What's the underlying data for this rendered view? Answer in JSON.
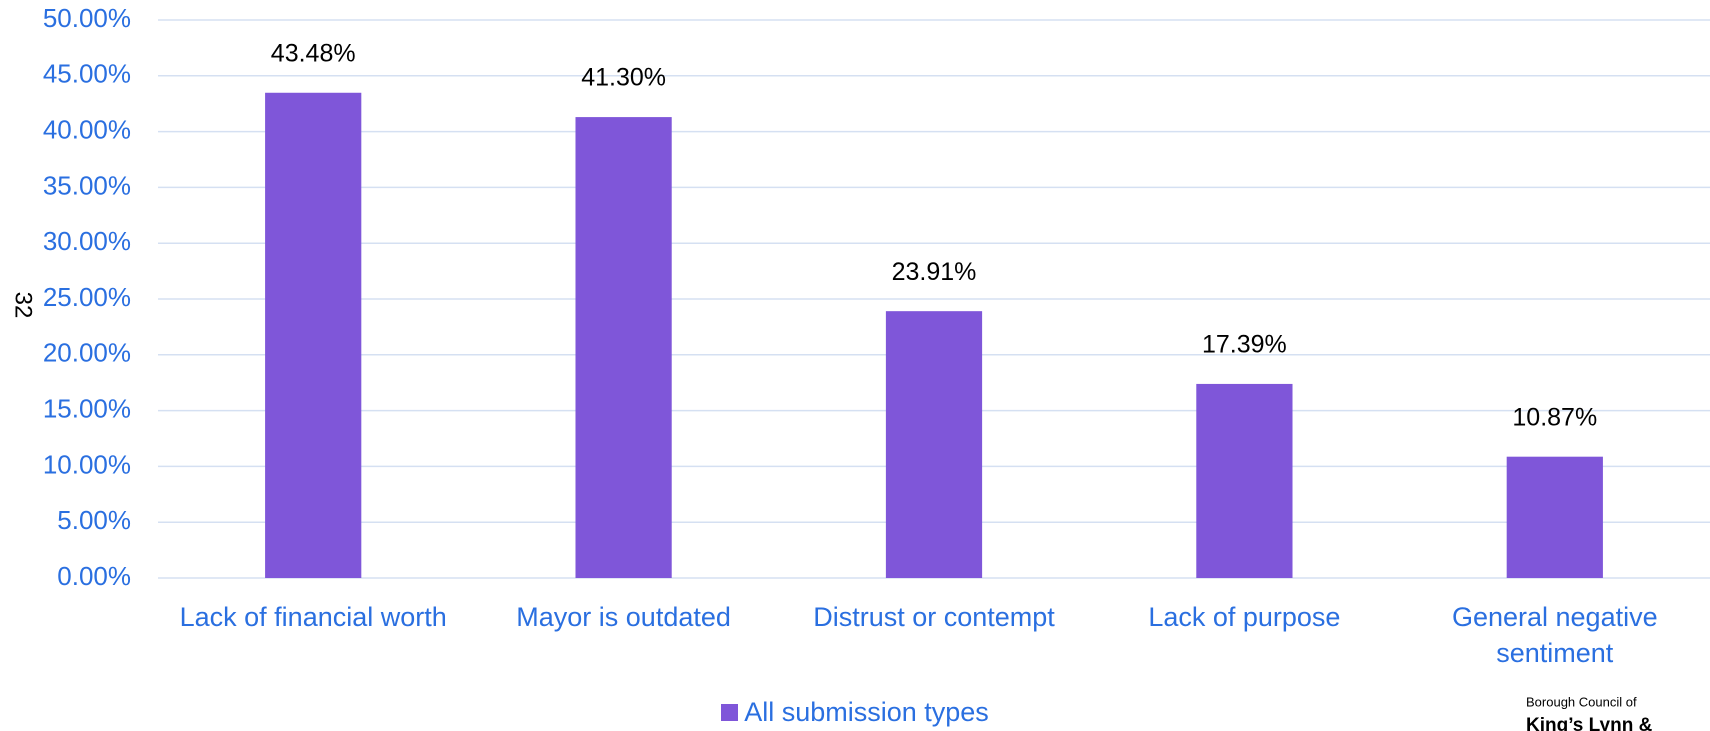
{
  "chart_data": {
    "type": "bar",
    "categories": [
      "Lack of financial worth",
      "Mayor is outdated",
      "Distrust or contempt",
      "Lack of purpose",
      "General negative sentiment"
    ],
    "series": [
      {
        "name": "All submission types",
        "color": "#7f56d9",
        "values": [
          43.48,
          41.3,
          23.91,
          17.39,
          10.87
        ],
        "value_labels": [
          "43.48%",
          "41.30%",
          "23.91%",
          "17.39%",
          "10.87%"
        ]
      }
    ],
    "ylim": [
      0,
      50
    ],
    "yticks": [
      {
        "value": 0,
        "label": "0.00%"
      },
      {
        "value": 5,
        "label": "5.00%"
      },
      {
        "value": 10,
        "label": "10.00%"
      },
      {
        "value": 15,
        "label": "15.00%"
      },
      {
        "value": 20,
        "label": "20.00%"
      },
      {
        "value": 25,
        "label": "25.00%"
      },
      {
        "value": 30,
        "label": "30.00%"
      },
      {
        "value": 35,
        "label": "35.00%"
      },
      {
        "value": 40,
        "label": "40.00%"
      },
      {
        "value": 45,
        "label": "45.00%"
      },
      {
        "value": 50,
        "label": "50.00%"
      }
    ],
    "grid": true,
    "legend": "bottom"
  },
  "page_number": "32",
  "logo": {
    "line1": "Borough Council of",
    "line2": "King’s Lynn &"
  }
}
